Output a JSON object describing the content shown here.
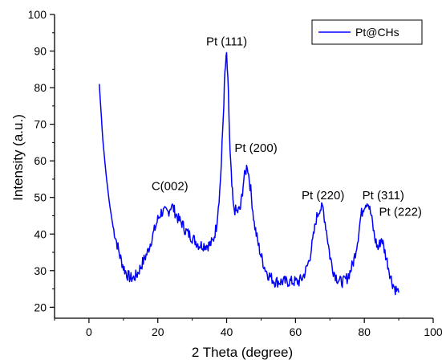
{
  "chart_data": {
    "type": "line",
    "title": "",
    "xlabel": "2 Theta (degree)",
    "ylabel": "Intensity (a.u.)",
    "xlim": [
      -10,
      100
    ],
    "ylim": [
      17,
      100
    ],
    "x_ticks": [
      0,
      20,
      40,
      60,
      80,
      100
    ],
    "y_ticks": [
      20,
      30,
      40,
      50,
      60,
      70,
      80,
      90,
      100
    ],
    "grid": false,
    "legend_position": "top-right",
    "colors": {
      "series": "#0000ff",
      "axes": "#000000"
    },
    "series": [
      {
        "name": "Pt@CHs",
        "x": [
          3,
          4,
          5,
          6,
          7,
          8,
          9,
          10,
          11,
          12,
          13,
          14,
          15,
          16,
          17,
          18,
          19,
          20,
          21,
          22,
          23,
          24,
          25,
          26,
          27,
          28,
          29,
          30,
          31,
          32,
          33,
          34,
          35,
          36,
          37,
          38,
          38.5,
          39,
          39.5,
          40,
          40.5,
          41,
          41.5,
          42,
          43,
          44,
          45,
          46,
          47,
          48,
          49,
          50,
          51,
          52,
          53,
          54,
          55,
          56,
          57,
          58,
          59,
          60,
          61,
          62,
          63,
          64,
          65,
          66,
          67,
          68,
          69,
          70,
          71,
          72,
          73,
          74,
          75,
          76,
          77,
          78,
          79,
          80,
          81,
          82,
          83,
          84,
          85,
          86,
          87,
          88,
          89,
          90
        ],
        "values": [
          81,
          66,
          56,
          48,
          42,
          38,
          34,
          31,
          29,
          28,
          28,
          29,
          31,
          33,
          35,
          38,
          41,
          44,
          46,
          46,
          46,
          48,
          46,
          44,
          43,
          41,
          40,
          39,
          38,
          37,
          37,
          37,
          37,
          38,
          42,
          52,
          60,
          72,
          84,
          89,
          78,
          62,
          53,
          47,
          46,
          47,
          55,
          59,
          52,
          43,
          38,
          34,
          31,
          29,
          28,
          27,
          27,
          27,
          27,
          27,
          27,
          27,
          27,
          28,
          30,
          33,
          38,
          44,
          47,
          47,
          41,
          34,
          30,
          28,
          27,
          27,
          28,
          30,
          33,
          38,
          45,
          48,
          49,
          45,
          39,
          36,
          39,
          35,
          31,
          27,
          25,
          24
        ]
      }
    ],
    "annotations": [
      {
        "text": "C(002)",
        "x": 23.5,
        "y": 52
      },
      {
        "text": "Pt (111)",
        "x": 40,
        "y": 91.5
      },
      {
        "text": "Pt (200)",
        "x": 48.5,
        "y": 62.5
      },
      {
        "text": "Pt (220)",
        "x": 68,
        "y": 49.5
      },
      {
        "text": "Pt (311)",
        "x": 85.5,
        "y": 49.5
      },
      {
        "text": "Pt (222)",
        "x": 90.5,
        "y": 45
      }
    ]
  }
}
